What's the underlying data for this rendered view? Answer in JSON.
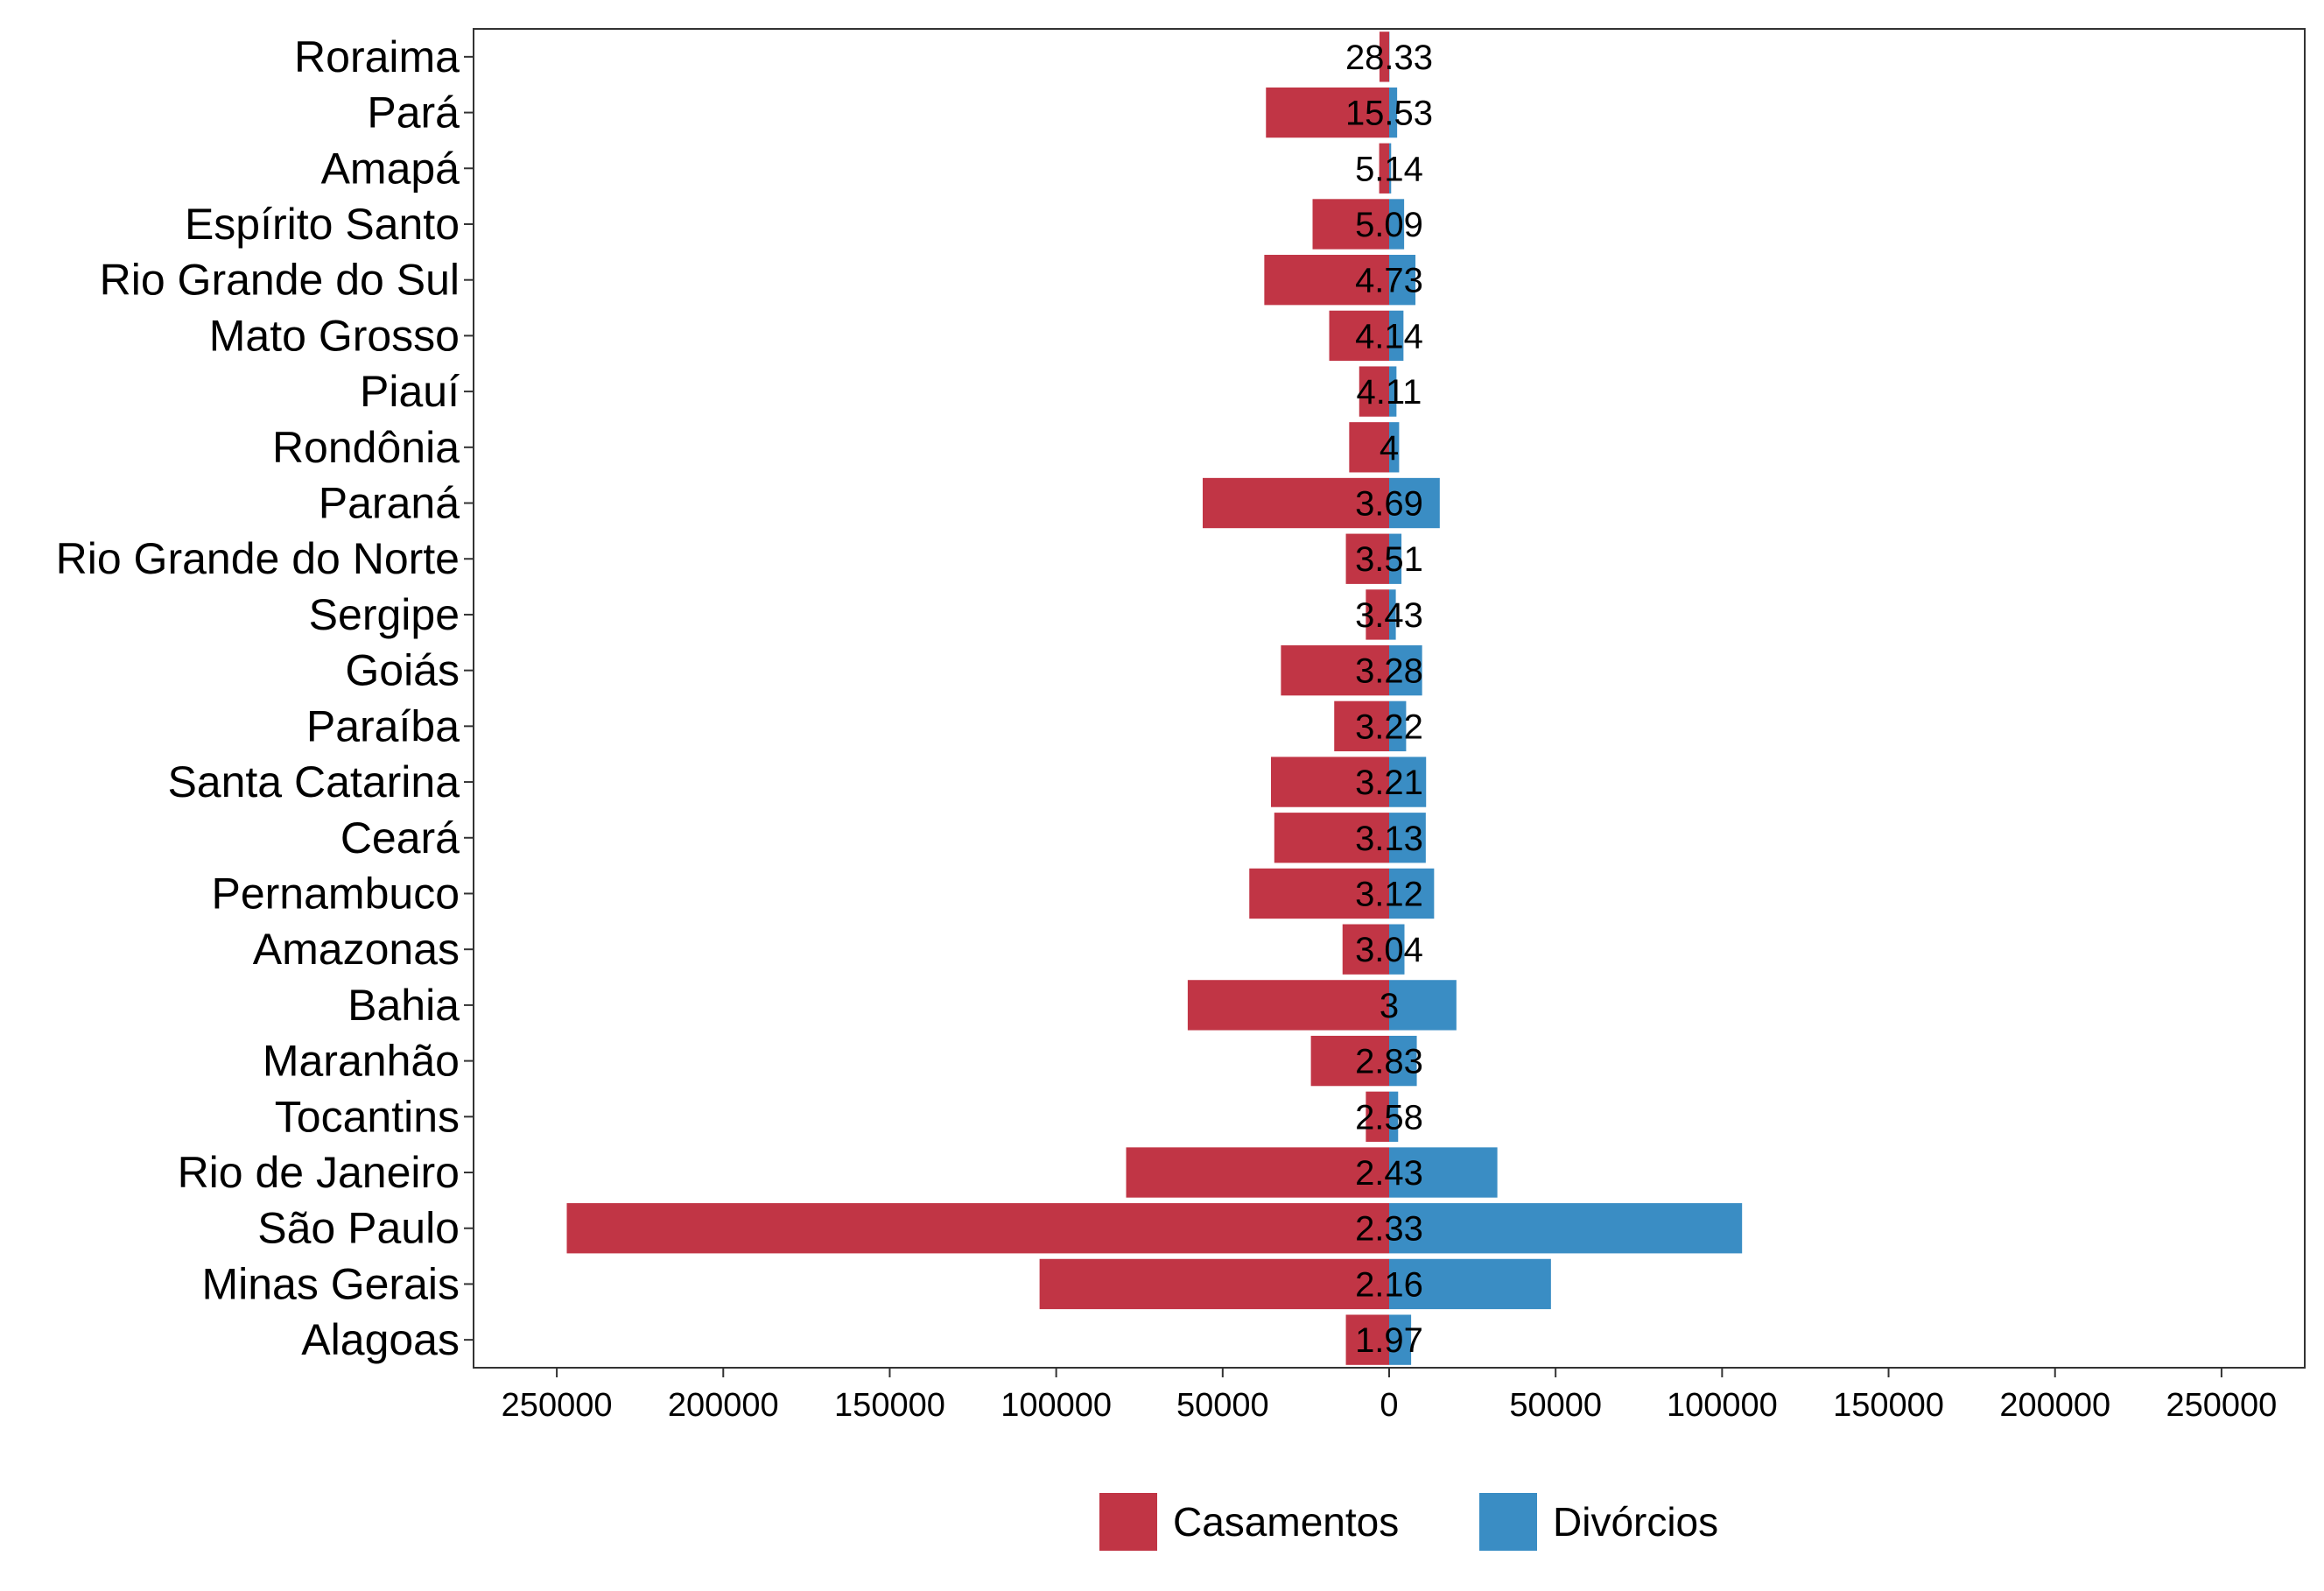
{
  "chart_data": {
    "type": "bar",
    "orientation": "horizontal",
    "layout": "diverging",
    "categories": [
      "Roraima",
      "Pará",
      "Amapá",
      "Espírito Santo",
      "Rio Grande do Sul",
      "Mato Grosso",
      "Piauí",
      "Rondônia",
      "Paraná",
      "Rio Grande do Norte",
      "Sergipe",
      "Goiás",
      "Paraíba",
      "Santa Catarina",
      "Ceará",
      "Pernambuco",
      "Amazonas",
      "Bahia",
      "Maranhão",
      "Tocantins",
      "Rio de Janeiro",
      "São Paulo",
      "Minas Gerais",
      "Alagoas"
    ],
    "series": [
      {
        "name": "Casamentos",
        "color": "#C13545",
        "direction": "left",
        "values": [
          2900,
          37000,
          3000,
          23000,
          37500,
          18000,
          9000,
          12000,
          56000,
          13000,
          7000,
          32500,
          16500,
          35500,
          34500,
          42000,
          14000,
          60500,
          23500,
          7000,
          79000,
          247000,
          105000,
          13000
        ]
      },
      {
        "name": "Divórcios",
        "color": "#3A8DC4",
        "direction": "right",
        "values": [
          100,
          2400,
          600,
          4500,
          7900,
          4300,
          2200,
          3000,
          15200,
          3700,
          2000,
          9900,
          5100,
          11100,
          11000,
          13500,
          4600,
          20200,
          8300,
          2700,
          32500,
          106000,
          48600,
          6600
        ]
      }
    ],
    "labels": [
      "28.33",
      "15.53",
      "5.14",
      "5.09",
      "4.73",
      "4.14",
      "4.11",
      "4",
      "3.69",
      "3.51",
      "3.43",
      "3.28",
      "3.22",
      "3.21",
      "3.13",
      "3.12",
      "3.04",
      "3",
      "2.83",
      "2.58",
      "2.43",
      "2.33",
      "2.16",
      "1.97"
    ],
    "xlim": [
      -275000,
      275000
    ],
    "xticks": [
      -250000,
      -200000,
      -150000,
      -100000,
      -50000,
      0,
      50000,
      100000,
      150000,
      200000,
      250000
    ],
    "xtick_labels": [
      "250000",
      "200000",
      "150000",
      "100000",
      "50000",
      "0",
      "50000",
      "100000",
      "150000",
      "200000",
      "250000"
    ],
    "title": "",
    "xlabel": "",
    "ylabel": "",
    "grid": false,
    "legend": {
      "position": "bottom",
      "entries": [
        "Casamentos",
        "Divórcios"
      ]
    }
  }
}
